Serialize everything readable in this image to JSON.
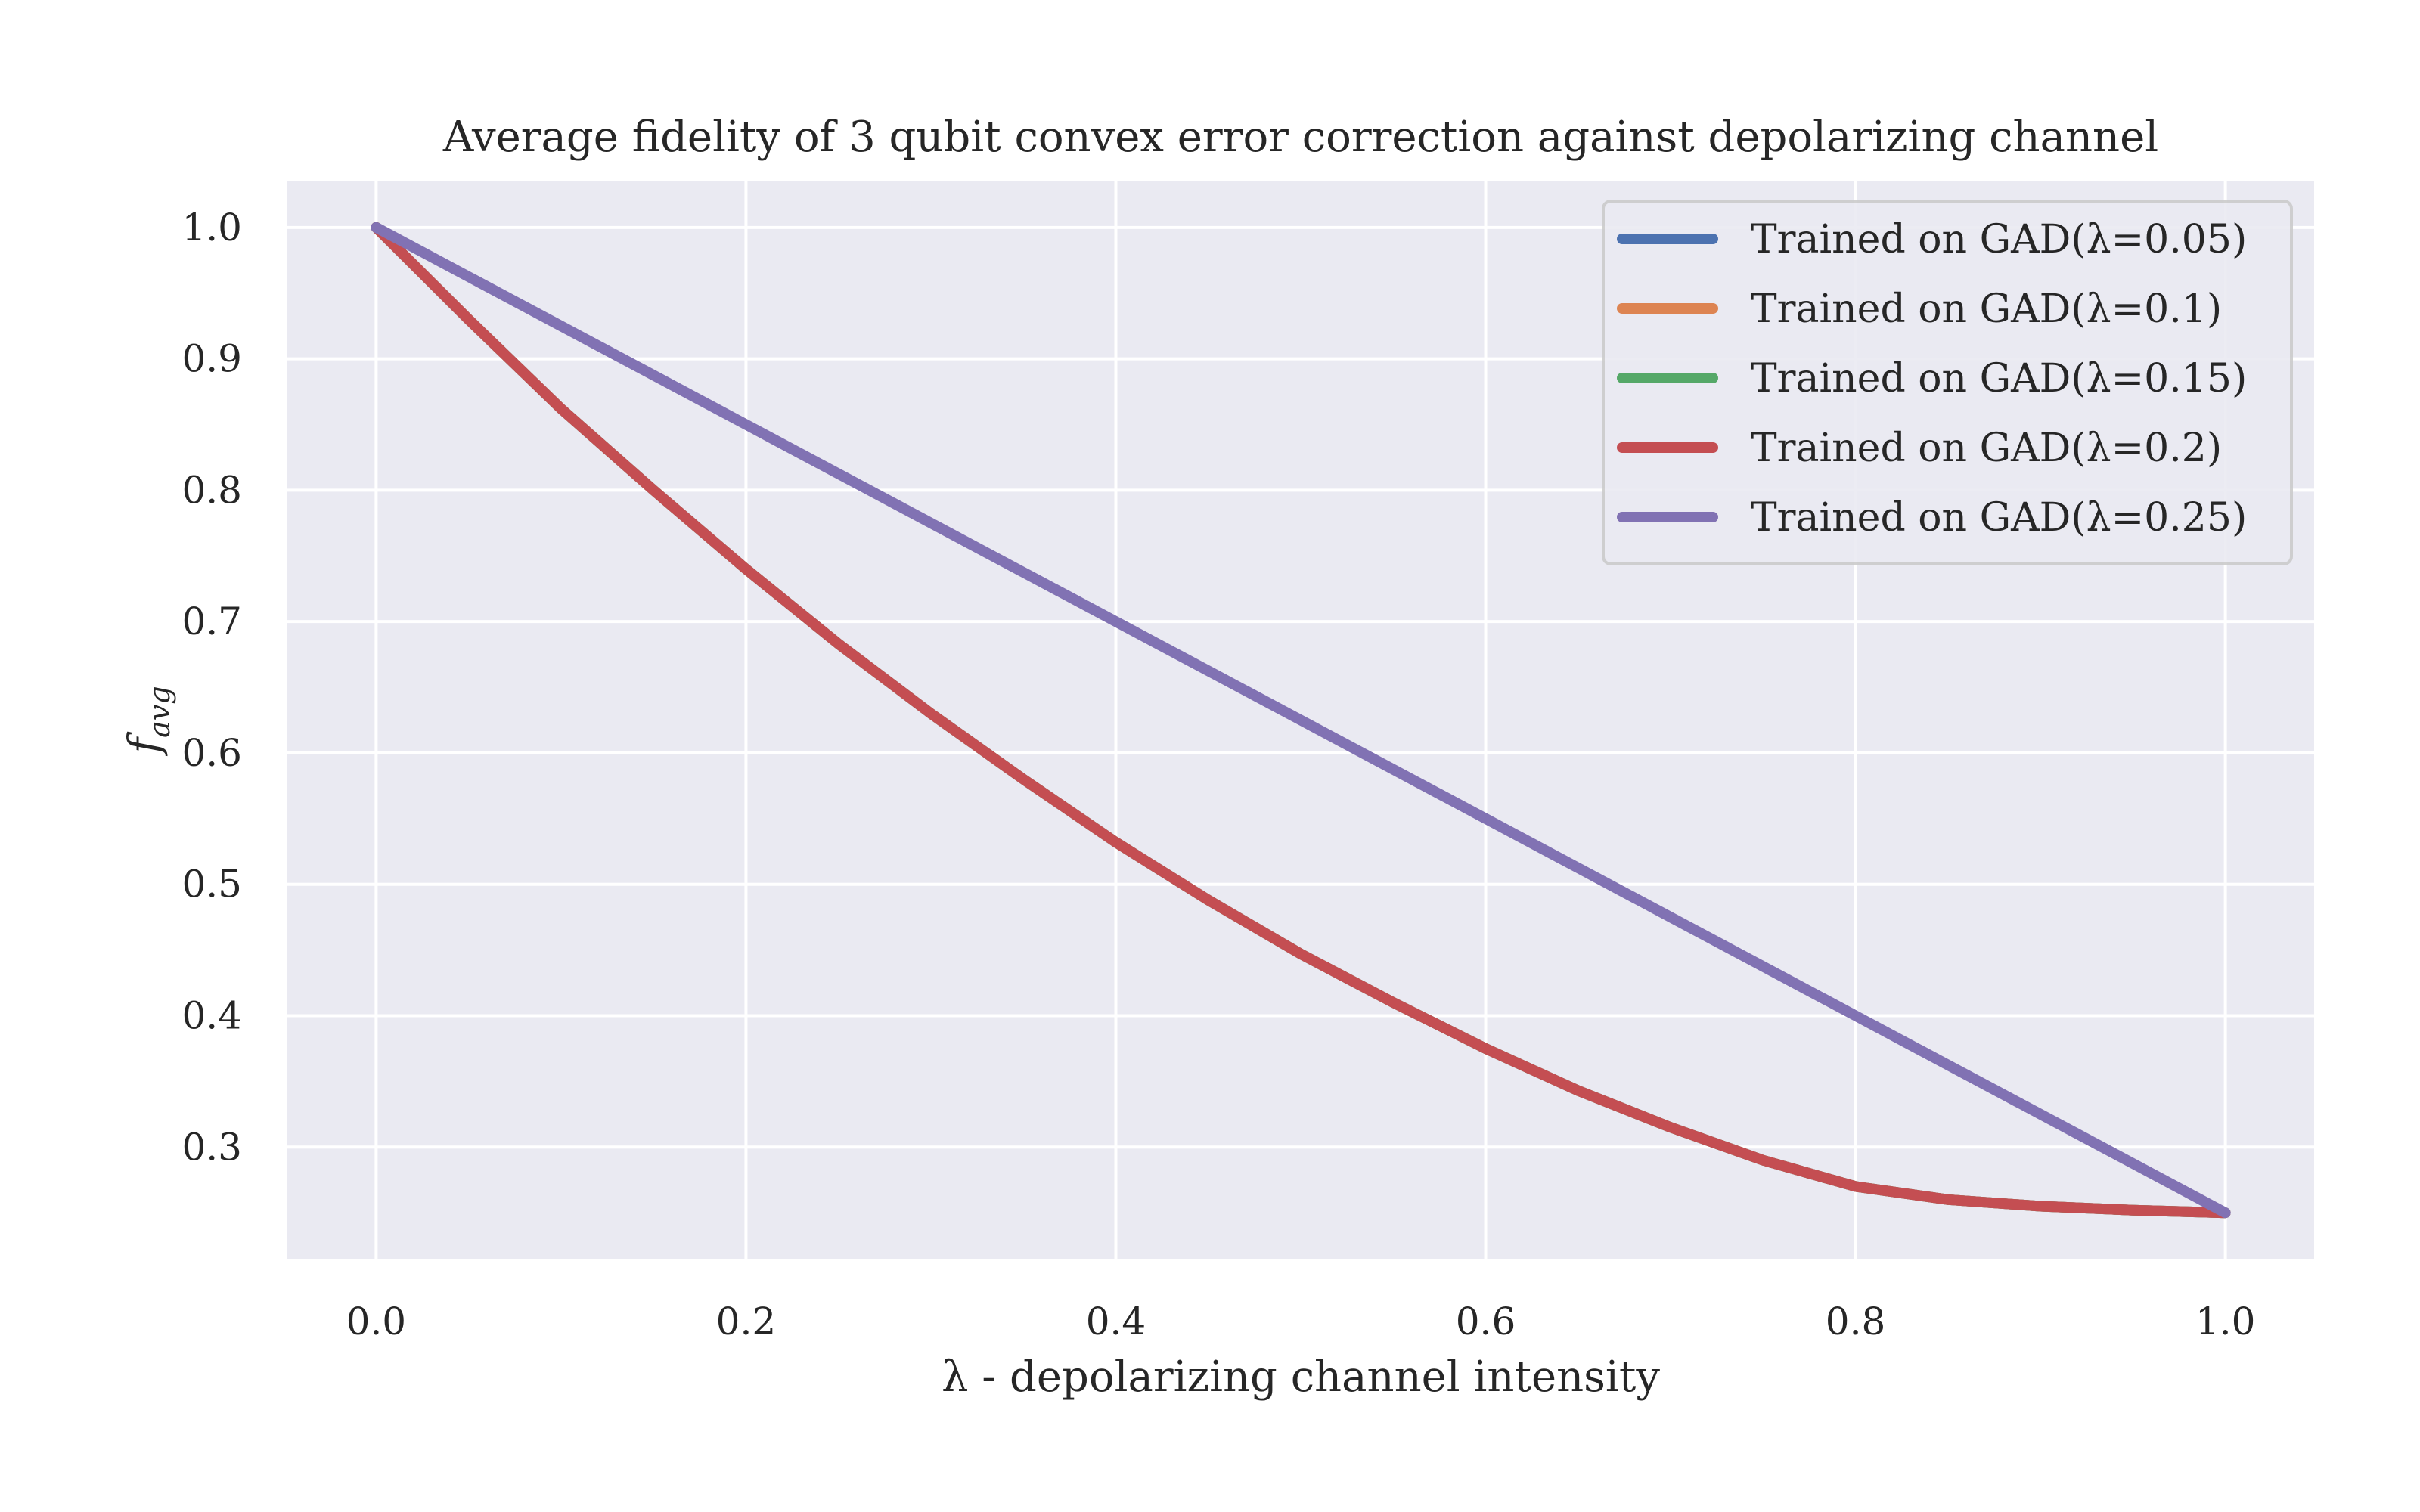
{
  "chart_data": {
    "type": "line",
    "title": "Average fidelity of 3 qubit convex error correction against depolarizing channel",
    "xlabel": "λ - depolarizing channel intensity",
    "ylabel": "f_avg",
    "ylabel_main": "f",
    "ylabel_sub": "avg",
    "xlim": [
      -0.048,
      1.048
    ],
    "ylim": [
      0.215,
      1.035
    ],
    "xticks": [
      0.0,
      0.2,
      0.4,
      0.6,
      0.8,
      1.0
    ],
    "xtick_labels": [
      "0.0",
      "0.2",
      "0.4",
      "0.6",
      "0.8",
      "1.0"
    ],
    "yticks": [
      0.3,
      0.4,
      0.5,
      0.6,
      0.7,
      0.8,
      0.9,
      1.0
    ],
    "ytick_labels": [
      "0.3",
      "0.4",
      "0.5",
      "0.6",
      "0.7",
      "0.8",
      "0.9",
      "1.0"
    ],
    "grid": true,
    "background": "#eaeaf2",
    "legend_position": "top-right",
    "x": [
      0.0,
      0.05,
      0.1,
      0.15,
      0.2,
      0.25,
      0.3,
      0.35,
      0.4,
      0.45,
      0.5,
      0.55,
      0.6,
      0.65,
      0.7,
      0.75,
      0.8,
      0.85,
      0.9,
      0.95,
      1.0
    ],
    "series": [
      {
        "name": "Trained on GAD(λ=0.05)",
        "color": "#4c72b0",
        "values": [
          1.0,
          0.93,
          0.862,
          0.8,
          0.74,
          0.683,
          0.63,
          0.58,
          0.532,
          0.488,
          0.447,
          0.41,
          0.375,
          0.343,
          0.315,
          0.29,
          0.27,
          0.26,
          0.255,
          0.252,
          0.25
        ]
      },
      {
        "name": "Trained on GAD(λ=0.1)",
        "color": "#dd8452",
        "values": [
          1.0,
          0.93,
          0.862,
          0.8,
          0.74,
          0.683,
          0.63,
          0.58,
          0.532,
          0.488,
          0.447,
          0.41,
          0.375,
          0.343,
          0.315,
          0.29,
          0.27,
          0.26,
          0.255,
          0.252,
          0.25
        ]
      },
      {
        "name": "Trained on GAD(λ=0.15)",
        "color": "#55a868",
        "values": [
          1.0,
          0.93,
          0.862,
          0.8,
          0.74,
          0.683,
          0.63,
          0.58,
          0.532,
          0.488,
          0.447,
          0.41,
          0.375,
          0.343,
          0.315,
          0.29,
          0.27,
          0.26,
          0.255,
          0.252,
          0.25
        ]
      },
      {
        "name": "Trained on GAD(λ=0.2)",
        "color": "#c44e52",
        "values": [
          1.0,
          0.93,
          0.862,
          0.8,
          0.74,
          0.683,
          0.63,
          0.58,
          0.532,
          0.488,
          0.447,
          0.41,
          0.375,
          0.343,
          0.315,
          0.29,
          0.27,
          0.26,
          0.255,
          0.252,
          0.25
        ]
      },
      {
        "name": "Trained on GAD(λ=0.25)",
        "color": "#8172b3",
        "values": [
          1.0,
          0.9625,
          0.925,
          0.8875,
          0.85,
          0.8125,
          0.775,
          0.7375,
          0.7,
          0.6625,
          0.625,
          0.5875,
          0.55,
          0.5125,
          0.475,
          0.4375,
          0.4,
          0.3625,
          0.325,
          0.2875,
          0.25
        ]
      }
    ]
  }
}
